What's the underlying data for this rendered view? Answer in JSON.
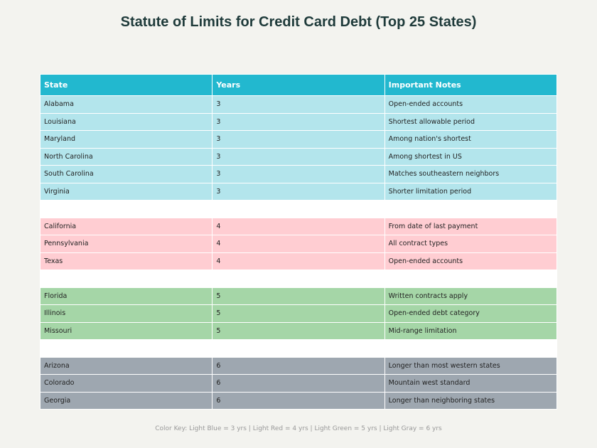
{
  "chart_data": {
    "type": "table",
    "title": "Statute of Limits for Credit Card Debt (Top 25 States)",
    "columns": [
      "State",
      "Years",
      "Important Notes"
    ],
    "rows": [
      {
        "cells": [
          "Alabama",
          "3",
          "Open-ended accounts"
        ],
        "color": "#b3e5ec"
      },
      {
        "cells": [
          "Louisiana",
          "3",
          "Shortest allowable period"
        ],
        "color": "#b3e5ec"
      },
      {
        "cells": [
          "Maryland",
          "3",
          "Among nation's shortest"
        ],
        "color": "#b3e5ec"
      },
      {
        "cells": [
          "North Carolina",
          "3",
          "Among shortest in US"
        ],
        "color": "#b3e5ec"
      },
      {
        "cells": [
          "South Carolina",
          "3",
          "Matches southeastern neighbors"
        ],
        "color": "#b3e5ec"
      },
      {
        "cells": [
          "Virginia",
          "3",
          "Shorter limitation period"
        ],
        "color": "#b3e5ec"
      },
      {
        "cells": [
          "",
          "",
          ""
        ],
        "color": "#ffffff"
      },
      {
        "cells": [
          "California",
          "4",
          "From date of last payment"
        ],
        "color": "#ffcdd2"
      },
      {
        "cells": [
          "Pennsylvania",
          "4",
          "All contract types"
        ],
        "color": "#ffcdd2"
      },
      {
        "cells": [
          "Texas",
          "4",
          "Open-ended accounts"
        ],
        "color": "#ffcdd2"
      },
      {
        "cells": [
          "",
          "",
          ""
        ],
        "color": "#ffffff"
      },
      {
        "cells": [
          "Florida",
          "5",
          "Written contracts apply"
        ],
        "color": "#a5d6a7"
      },
      {
        "cells": [
          "Illinois",
          "5",
          "Open-ended debt category"
        ],
        "color": "#a5d6a7"
      },
      {
        "cells": [
          "Missouri",
          "5",
          "Mid-range limitation"
        ],
        "color": "#a5d6a7"
      },
      {
        "cells": [
          "",
          "",
          ""
        ],
        "color": "#ffffff"
      },
      {
        "cells": [
          "Arizona",
          "6",
          "Longer than most western states"
        ],
        "color": "#9ea7b0"
      },
      {
        "cells": [
          "Colorado",
          "6",
          "Mountain west standard"
        ],
        "color": "#9ea7b0"
      },
      {
        "cells": [
          "Georgia",
          "6",
          "Longer than neighboring states"
        ],
        "color": "#9ea7b0"
      }
    ],
    "header_color": "#22b8cf",
    "annotation": "Color Key: Light Blue = 3 yrs | Light Red = 4 yrs | Light Green = 5 yrs | Light Gray = 6 yrs"
  }
}
